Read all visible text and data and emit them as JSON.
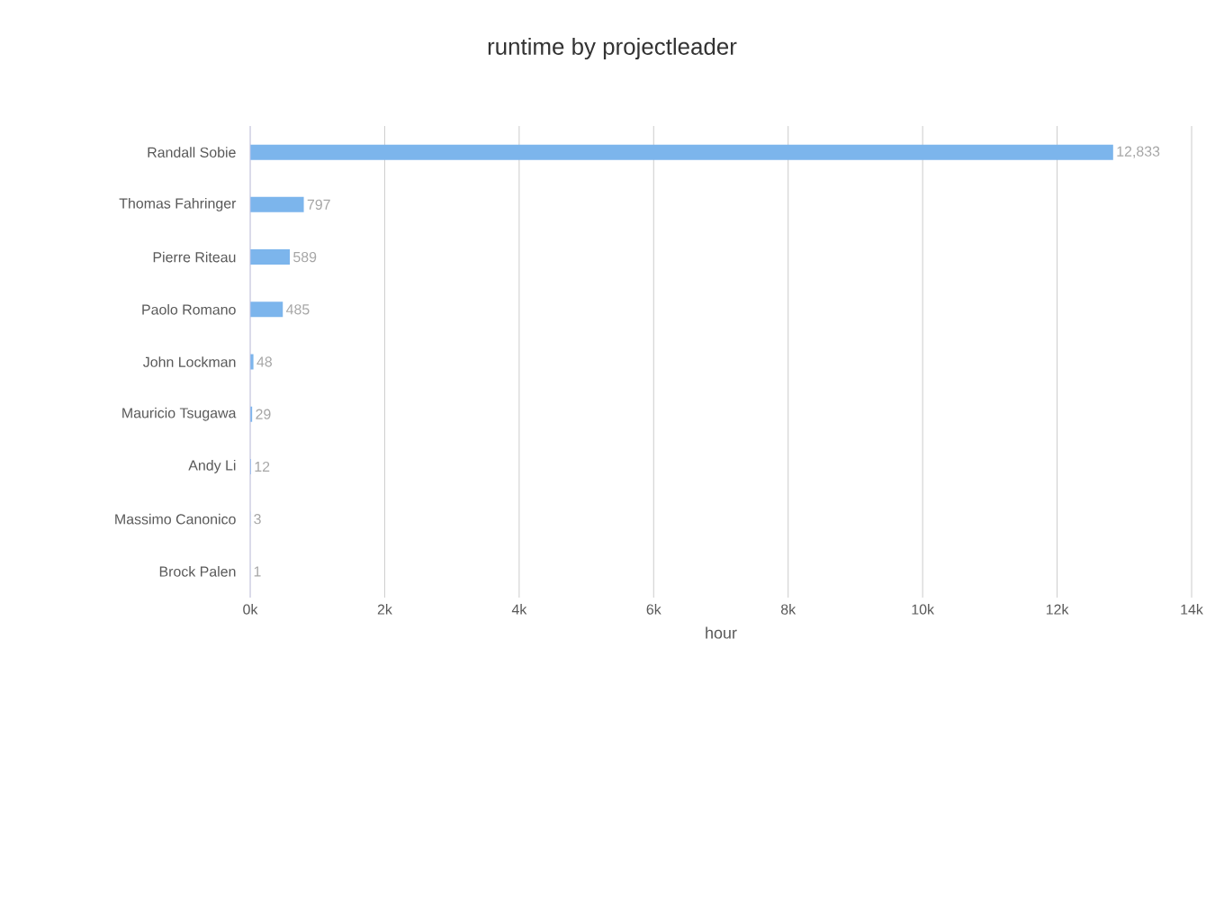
{
  "chart_data": {
    "type": "bar",
    "orientation": "horizontal",
    "title": "runtime by projectleader",
    "xlabel": "hour",
    "categories": [
      "Randall Sobie",
      "Thomas Fahringer",
      "Pierre Riteau",
      "Paolo Romano",
      "John Lockman",
      "Mauricio Tsugawa",
      "Andy Li",
      "Massimo Canonico",
      "Brock Palen"
    ],
    "values": [
      12833,
      797,
      589,
      485,
      48,
      29,
      12,
      3,
      1
    ],
    "value_labels": [
      "12,833",
      "797",
      "589",
      "485",
      "48",
      "29",
      "12",
      "3",
      "1"
    ],
    "color": "#7cb5ec",
    "xlim": [
      0,
      14000
    ],
    "xticks": [
      {
        "value": 0,
        "label": "0k"
      },
      {
        "value": 2000,
        "label": "2k"
      },
      {
        "value": 4000,
        "label": "4k"
      },
      {
        "value": 6000,
        "label": "6k"
      },
      {
        "value": 8000,
        "label": "8k"
      },
      {
        "value": 10000,
        "label": "10k"
      },
      {
        "value": 12000,
        "label": "12k"
      },
      {
        "value": 14000,
        "label": "14k"
      }
    ],
    "grid": "x"
  }
}
